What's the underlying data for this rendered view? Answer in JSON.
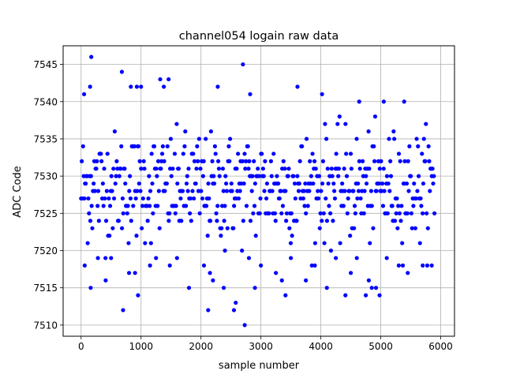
{
  "chart_data": {
    "type": "scatter",
    "title": "channel054 logain raw data",
    "xlabel": "sample number",
    "ylabel": "ADC Code",
    "xlim": [
      -300,
      6230
    ],
    "ylim": [
      7508.5,
      7547.5
    ],
    "x_ticks": [
      0,
      1000,
      2000,
      3000,
      4000,
      5000,
      6000
    ],
    "y_ticks": [
      7510,
      7515,
      7520,
      7525,
      7530,
      7535,
      7540,
      7545
    ],
    "grid": true,
    "series": [
      {
        "color": "#0000ff",
        "marker": "circle",
        "x_range": [
          0,
          5900
        ],
        "dense_band": [
          7518,
          7538
        ],
        "points": [
          [
            170,
            7546
          ],
          [
            680,
            7544
          ],
          [
            2700,
            7545
          ],
          [
            1320,
            7543
          ],
          [
            1460,
            7543
          ],
          [
            1380,
            7542
          ],
          [
            2280,
            7542
          ],
          [
            3610,
            7542
          ],
          [
            150,
            7542
          ],
          [
            830,
            7542
          ],
          [
            930,
            7542
          ],
          [
            1000,
            7542
          ],
          [
            50,
            7541
          ],
          [
            2820,
            7541
          ],
          [
            4020,
            7541
          ],
          [
            4640,
            7540
          ],
          [
            5050,
            7540
          ],
          [
            5390,
            7540
          ],
          [
            160,
            7515
          ],
          [
            1800,
            7515
          ],
          [
            2380,
            7515
          ],
          [
            2900,
            7515
          ],
          [
            4100,
            7515
          ],
          [
            4850,
            7515
          ],
          [
            4920,
            7515
          ],
          [
            950,
            7514
          ],
          [
            3410,
            7514
          ],
          [
            4410,
            7514
          ],
          [
            4750,
            7514
          ],
          [
            4980,
            7514
          ],
          [
            2580,
            7513
          ],
          [
            700,
            7512
          ],
          [
            2120,
            7512
          ],
          [
            2550,
            7512
          ],
          [
            2730,
            7510
          ],
          [
            60,
            7518
          ],
          [
            280,
            7519
          ],
          [
            410,
            7516
          ],
          [
            500,
            7519
          ],
          [
            800,
            7517
          ],
          [
            900,
            7517
          ],
          [
            1150,
            7518
          ],
          [
            1250,
            7519
          ],
          [
            1480,
            7518
          ],
          [
            1600,
            7519
          ],
          [
            2050,
            7518
          ],
          [
            2150,
            7517
          ],
          [
            2200,
            7516
          ],
          [
            2400,
            7520
          ],
          [
            2800,
            7519
          ],
          [
            3000,
            7518
          ],
          [
            3250,
            7517
          ],
          [
            3350,
            7516
          ],
          [
            3500,
            7519
          ],
          [
            3750,
            7516
          ],
          [
            3900,
            7518
          ],
          [
            4250,
            7519
          ],
          [
            4500,
            7517
          ],
          [
            4600,
            7519
          ],
          [
            4800,
            7516
          ],
          [
            5100,
            7519
          ],
          [
            5300,
            7518
          ],
          [
            5450,
            7517
          ],
          [
            5700,
            7518
          ],
          [
            5850,
            7518
          ]
        ]
      }
    ]
  }
}
